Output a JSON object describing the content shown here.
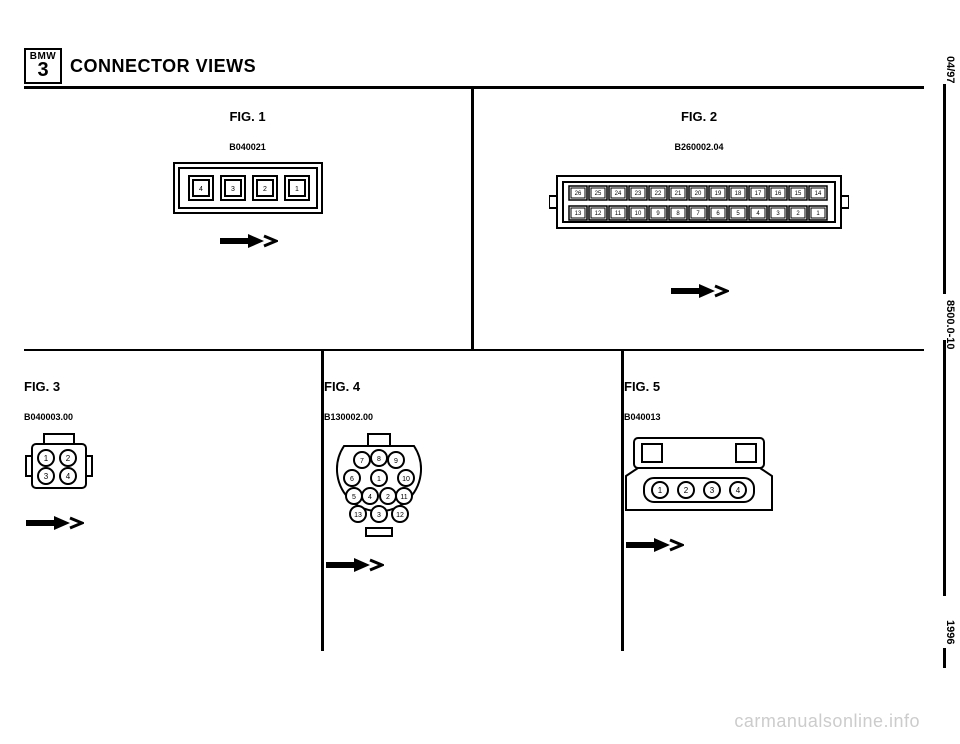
{
  "badge": {
    "brand": "BMW",
    "model": "3"
  },
  "title": "CONNECTOR VIEWS",
  "side": {
    "date": "04/97",
    "docnum": "8500.0-10",
    "year": "1996"
  },
  "watermark": "carmanualsonline.info",
  "figures": {
    "fig1": {
      "label": "FIG. 1",
      "part": "B040021",
      "pins": [
        "4",
        "3",
        "2",
        "1"
      ],
      "box_color": "#000000",
      "bg_color": "#ffffff",
      "pin_size": 14
    },
    "fig2": {
      "label": "FIG. 2",
      "part": "B260002.04",
      "rows": [
        [
          "26",
          "25",
          "24",
          "23",
          "22",
          "21",
          "20",
          "19",
          "18",
          "17",
          "16",
          "15",
          "14"
        ],
        [
          "13",
          "12",
          "11",
          "10",
          "9",
          "8",
          "7",
          "6",
          "5",
          "4",
          "3",
          "2",
          "1"
        ]
      ],
      "box_color": "#000000",
      "bg_color": "#ffffff",
      "pin_w": 14,
      "pin_h": 14,
      "gap": 4
    },
    "fig3": {
      "label": "FIG. 3",
      "part": "B040003.00",
      "pins": [
        "1",
        "2",
        "3",
        "4"
      ],
      "circle_r": 7
    },
    "fig4": {
      "label": "FIG. 4",
      "part": "B130002.00",
      "pins": [
        "7",
        "8",
        "9",
        "6",
        "1",
        "10",
        "5",
        "4",
        "2",
        "11",
        "13",
        "3",
        "12"
      ],
      "layout": "round"
    },
    "fig5": {
      "label": "FIG. 5",
      "part": "B040013",
      "pins": [
        "1",
        "2",
        "3",
        "4"
      ]
    }
  },
  "style": {
    "stroke": "#000000",
    "stroke_width": 2,
    "font_family": "Arial",
    "pin_font_size": 7
  }
}
